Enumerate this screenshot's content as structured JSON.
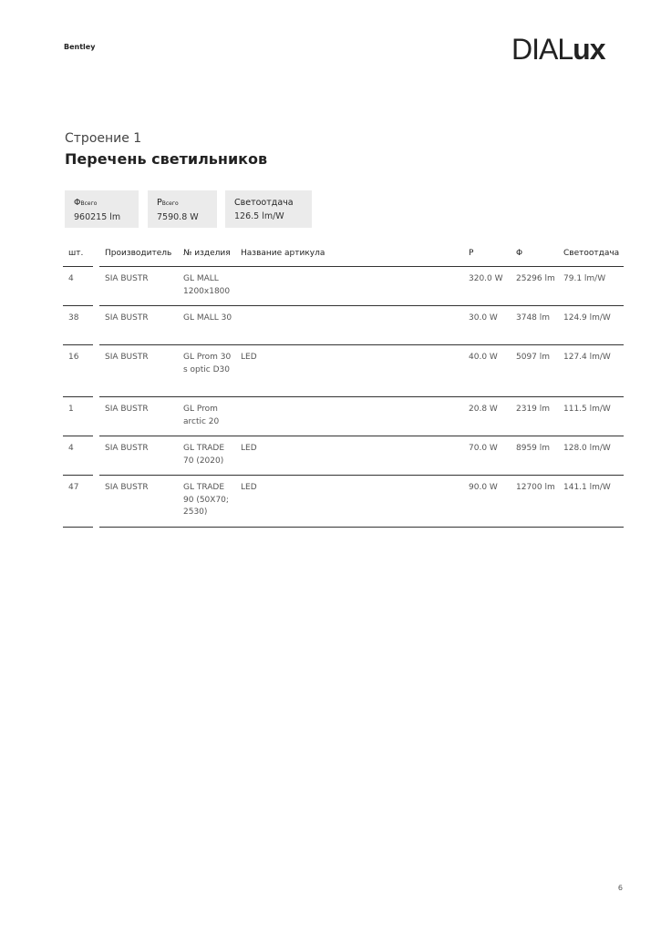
{
  "header": {
    "project": "Bentley",
    "logo": "DIALux",
    "logo_light": "DIAL",
    "logo_bold": "ux"
  },
  "building": "Строение 1",
  "title": "Перечень светильников",
  "summary": [
    {
      "label": "Φ",
      "label_sub": "Всего",
      "value": "960215 lm"
    },
    {
      "label": "P",
      "label_sub": "Всего",
      "value": "7590.8 W"
    },
    {
      "label": "Светоотдача",
      "label_sub": "",
      "value": "126.5 lm/W"
    }
  ],
  "table": {
    "columns": [
      "шт.",
      "Производитель",
      "№ изделия",
      "Название артикула",
      "P",
      "Φ",
      "Светоотдача"
    ],
    "rows": [
      {
        "qty": "4",
        "manufacturer": "SIA BUSTR",
        "article": [
          "GL MALL",
          "1200x1800"
        ],
        "name": "",
        "p": "320.0 W",
        "flux": "25296 lm",
        "efficacy": "79.1 lm/W"
      },
      {
        "qty": "38",
        "manufacturer": "SIA BUSTR",
        "article": [
          "GL MALL 30"
        ],
        "name": "",
        "p": "30.0 W",
        "flux": "3748 lm",
        "efficacy": "124.9 lm/W"
      },
      {
        "qty": "16",
        "manufacturer": "SIA BUSTR",
        "article": [
          "GL Prom 30",
          "s optic D30"
        ],
        "name": "LED",
        "p": "40.0 W",
        "flux": "5097 lm",
        "efficacy": "127.4 lm/W"
      },
      {
        "qty": "1",
        "manufacturer": "SIA BUSTR",
        "article": [
          "GL Prom",
          "arctic 20"
        ],
        "name": "",
        "p": "20.8 W",
        "flux": "2319 lm",
        "efficacy": "111.5 lm/W"
      },
      {
        "qty": "4",
        "manufacturer": "SIA BUSTR",
        "article": [
          "GL TRADE",
          "70 (2020)"
        ],
        "name": "LED",
        "p": "70.0 W",
        "flux": "8959 lm",
        "efficacy": "128.0 lm/W"
      },
      {
        "qty": "47",
        "manufacturer": "SIA BUSTR",
        "article": [
          "GL TRADE",
          "90 (50X70;",
          "2530)"
        ],
        "name": "LED",
        "p": "90.0 W",
        "flux": "12700 lm",
        "efficacy": "141.1 lm/W"
      }
    ]
  },
  "footer": {
    "page": "6"
  }
}
